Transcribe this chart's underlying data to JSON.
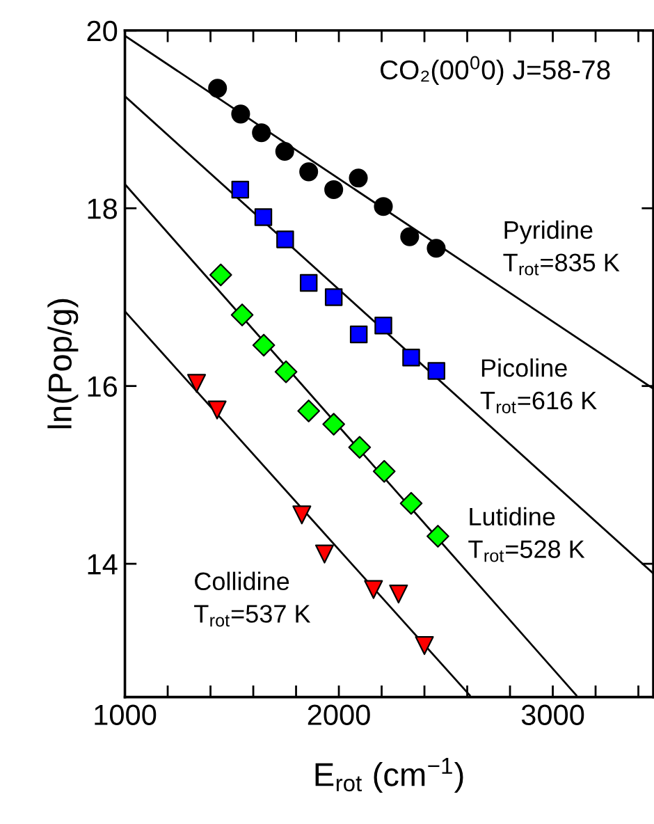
{
  "chart_data": {
    "type": "scatter",
    "xlabel": "E$_{rot}$ (cm$^{−1}$)",
    "ylabel": "ln(Pop/g)",
    "xlim": [
      1000,
      3470
    ],
    "ylim": [
      12.5,
      20
    ],
    "xticks": [
      1000,
      {
        "value": 1200,
        "label": null
      },
      {
        "value": 1400,
        "label": null
      },
      {
        "value": 1600,
        "label": null
      },
      {
        "value": 1800,
        "label": null
      },
      2000,
      {
        "value": 2200,
        "label": null
      },
      {
        "value": 2400,
        "label": null
      },
      {
        "value": 2600,
        "label": null
      },
      {
        "value": 2800,
        "label": null
      },
      3000,
      {
        "value": 3200,
        "label": null
      },
      {
        "value": 3400,
        "label": null
      }
    ],
    "yticks": [
      14,
      16,
      18,
      20
    ],
    "grid": false,
    "legend": false,
    "series": [
      {
        "type": "line",
        "color": "#000000",
        "marker": "none",
        "line_style": "solid",
        "x": [
          1000,
          3470
        ],
        "values": [
          19.94,
          15.97
        ]
      },
      {
        "type": "line",
        "color": "#000000",
        "marker": "none",
        "line_style": "solid",
        "x": [
          1000,
          3470
        ],
        "values": [
          19.26,
          13.89
        ]
      },
      {
        "type": "line",
        "color": "#000000",
        "marker": "none",
        "line_style": "solid",
        "x": [
          1000,
          3110
        ],
        "values": [
          18.27,
          12.52
        ]
      },
      {
        "type": "line",
        "color": "#000000",
        "marker": "none",
        "line_style": "solid",
        "x": [
          1000,
          2612
        ],
        "values": [
          16.84,
          12.52
        ]
      },
      {
        "color": "#000000",
        "marker": "circle",
        "x": [
          1433,
          1541,
          1638,
          1747,
          1859,
          1976,
          2091,
          2208,
          2331,
          2455
        ],
        "values": [
          19.35,
          19.06,
          18.85,
          18.64,
          18.41,
          18.21,
          18.34,
          18.02,
          17.68,
          17.55
        ]
      },
      {
        "color": "#0000ff",
        "marker": "square",
        "x": [
          1539,
          1647,
          1749,
          1859,
          1976,
          2093,
          2208,
          2338,
          2456
        ],
        "values": [
          18.21,
          17.9,
          17.65,
          17.16,
          17.0,
          16.58,
          16.68,
          16.32,
          16.17
        ]
      },
      {
        "color": "#00ff00",
        "marker": "diamond",
        "x": [
          1448,
          1548,
          1649,
          1753,
          1859,
          1976,
          2097,
          2212,
          2338,
          2463
        ],
        "values": [
          17.25,
          16.8,
          16.46,
          16.16,
          15.72,
          15.57,
          15.31,
          15.04,
          14.68,
          14.31
        ]
      },
      {
        "color": "#ff0000",
        "marker": "triangle",
        "x": [
          1335,
          1431,
          1827,
          1933,
          2162,
          2279,
          2400
        ],
        "values": [
          16.03,
          15.73,
          14.55,
          14.11,
          13.71,
          13.66,
          13.08
        ]
      }
    ],
    "annotations": [
      "CO₂(00$^{0}$0) J=58-78",
      "Pyridine\nT$_{rot}$=835 K",
      "Picoline\nT$_{rot}$=616 K",
      "Lutidine\nT$_{rot}$=528 K",
      "Collidine\nT$_{rot}$=537 K"
    ]
  }
}
